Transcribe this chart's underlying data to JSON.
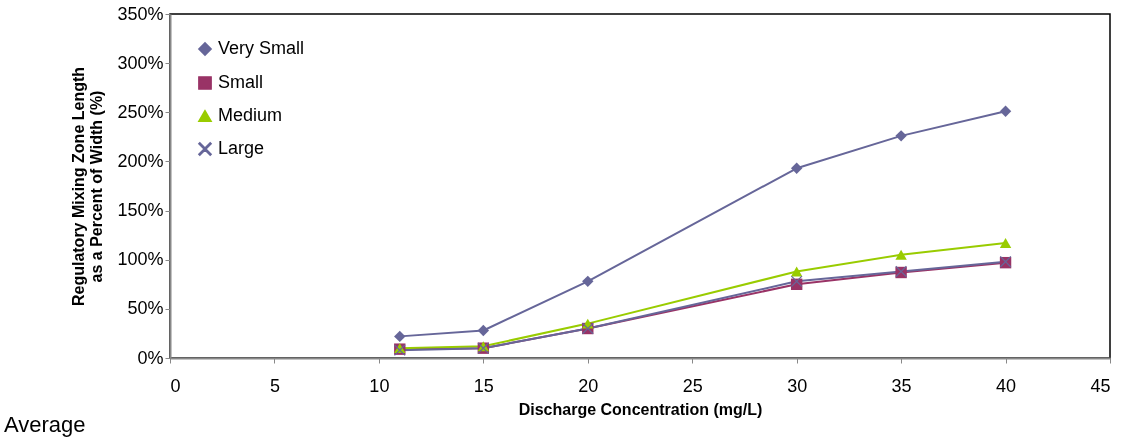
{
  "chart_data": {
    "type": "line",
    "xlabel": "Discharge Concentration (mg/L)",
    "ylabel": "Regulatory Mixing Zone Length as a Percent of Width (%)",
    "annotations": [
      "Average"
    ],
    "x": [
      11,
      15,
      20,
      30,
      35,
      40
    ],
    "series": [
      {
        "name": "Very Small",
        "color": "#666699",
        "marker": "diamond",
        "values": [
          22,
          28,
          78,
          193,
          226,
          251
        ]
      },
      {
        "name": "Small",
        "color": "#993366",
        "marker": "square",
        "values": [
          9,
          10,
          30,
          75,
          87,
          97
        ]
      },
      {
        "name": "Medium",
        "color": "#99cc00",
        "marker": "triangle",
        "values": [
          10,
          12,
          35,
          88,
          105,
          117
        ]
      },
      {
        "name": "Large",
        "color": "#666699",
        "marker": "cross",
        "values": [
          8,
          10,
          30,
          78,
          88,
          98
        ]
      }
    ],
    "xlim": [
      0,
      45
    ],
    "xticks": [
      0,
      5,
      10,
      15,
      20,
      25,
      30,
      35,
      40,
      45
    ],
    "ylim": [
      0,
      350
    ],
    "yticks": [
      {
        "value": 0,
        "label": "0%"
      },
      {
        "value": 50,
        "label": "50%"
      },
      {
        "value": 100,
        "label": "100%"
      },
      {
        "value": 150,
        "label": "150%"
      },
      {
        "value": 200,
        "label": "200%"
      },
      {
        "value": 250,
        "label": "250%"
      },
      {
        "value": 300,
        "label": "300%"
      },
      {
        "value": 350,
        "label": "350%"
      }
    ],
    "grid": false,
    "legend": "top left"
  }
}
